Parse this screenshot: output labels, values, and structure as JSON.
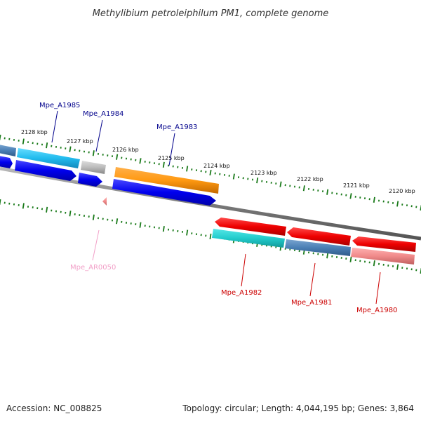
{
  "title": "Methylibium petroleiphilum PM1, complete genome",
  "footer": {
    "accession": "Accession: NC_008825",
    "summary": "Topology: circular; Length: 4,044,195 bp; Genes: 3,864"
  },
  "ticks": [
    {
      "label": "2128 kbp"
    },
    {
      "label": "2127 kbp"
    },
    {
      "label": "2126 kbp"
    },
    {
      "label": "2125 kbp"
    },
    {
      "label": "2124 kbp"
    },
    {
      "label": "2123 kbp"
    },
    {
      "label": "2122 kbp"
    },
    {
      "label": "2121 kbp"
    },
    {
      "label": "2120 kbp"
    }
  ],
  "genes": [
    {
      "label": "Mpe_A1985",
      "color": "#00008b"
    },
    {
      "label": "Mpe_A1984",
      "color": "#00008b"
    },
    {
      "label": "Mpe_A1983",
      "color": "#00008b"
    },
    {
      "label": "Mpe_AR0050",
      "color": "#f2a0c8"
    },
    {
      "label": "Mpe_A1982",
      "color": "#cc0000"
    },
    {
      "label": "Mpe_A1981",
      "color": "#cc0000"
    },
    {
      "label": "Mpe_A1980",
      "color": "#cc0000"
    }
  ],
  "colors": {
    "backbone": "#888888",
    "tick_marks": "#1a7a1a",
    "forward_gene": "#0000ee",
    "reverse_gene": "#ee0000",
    "cog_light_blue": "#33ccee",
    "cog_orange": "#ff9911",
    "cog_grey": "#bbbbbb",
    "cog_cyan": "#22cccc",
    "cog_steel_blue": "#4a7fb5",
    "cog_pink": "#f08a8a"
  }
}
